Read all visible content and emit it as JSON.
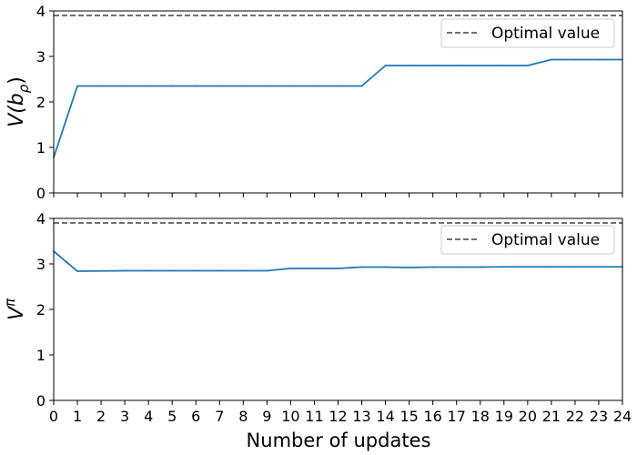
{
  "colors": {
    "series": "#1f77b4",
    "optimal_line": "#404040",
    "axes": "#000000",
    "legend_border": "#cccccc"
  },
  "chart_data": [
    {
      "type": "line",
      "ylabel": "V(b",
      "ylabel_sub": "ρ",
      "ylabel_close": ")",
      "xlabel": "",
      "xlim": [
        0,
        24
      ],
      "ylim": [
        0,
        4
      ],
      "yticks": [
        "0",
        "1",
        "2",
        "3",
        "4"
      ],
      "grid": false,
      "legend": {
        "placement": "upper-right",
        "entries": [
          "Optimal value"
        ]
      },
      "optimal_value": 3.9,
      "series": [
        {
          "x": [
            0,
            1,
            2,
            3,
            4,
            5,
            6,
            7,
            8,
            9,
            10,
            11,
            12,
            13,
            14,
            15,
            16,
            17,
            18,
            19,
            20,
            21,
            22,
            23,
            24
          ],
          "values": [
            0.78,
            2.35,
            2.35,
            2.35,
            2.35,
            2.35,
            2.35,
            2.35,
            2.35,
            2.35,
            2.35,
            2.35,
            2.35,
            2.35,
            2.8,
            2.8,
            2.8,
            2.8,
            2.8,
            2.8,
            2.8,
            2.93,
            2.93,
            2.93,
            2.93
          ]
        }
      ]
    },
    {
      "type": "line",
      "ylabel": "V",
      "ylabel_sup": "π",
      "xlabel": "Number of updates",
      "xlim": [
        0,
        24
      ],
      "ylim": [
        0,
        4
      ],
      "yticks": [
        "0",
        "1",
        "2",
        "3",
        "4"
      ],
      "xticks": [
        "0",
        "1",
        "2",
        "3",
        "4",
        "5",
        "6",
        "7",
        "8",
        "9",
        "10",
        "11",
        "12",
        "13",
        "14",
        "15",
        "16",
        "17",
        "18",
        "19",
        "20",
        "21",
        "22",
        "23",
        "24"
      ],
      "grid": false,
      "legend": {
        "placement": "upper-right",
        "entries": [
          "Optimal value"
        ]
      },
      "optimal_value": 3.9,
      "series": [
        {
          "x": [
            0,
            1,
            2,
            3,
            4,
            5,
            6,
            7,
            8,
            9,
            10,
            11,
            12,
            13,
            14,
            15,
            16,
            17,
            18,
            19,
            20,
            21,
            22,
            23,
            24
          ],
          "values": [
            3.28,
            2.84,
            2.845,
            2.85,
            2.85,
            2.85,
            2.85,
            2.85,
            2.85,
            2.85,
            2.9,
            2.9,
            2.9,
            2.93,
            2.93,
            2.92,
            2.93,
            2.93,
            2.93,
            2.935,
            2.935,
            2.935,
            2.935,
            2.935,
            2.935
          ]
        }
      ]
    }
  ]
}
